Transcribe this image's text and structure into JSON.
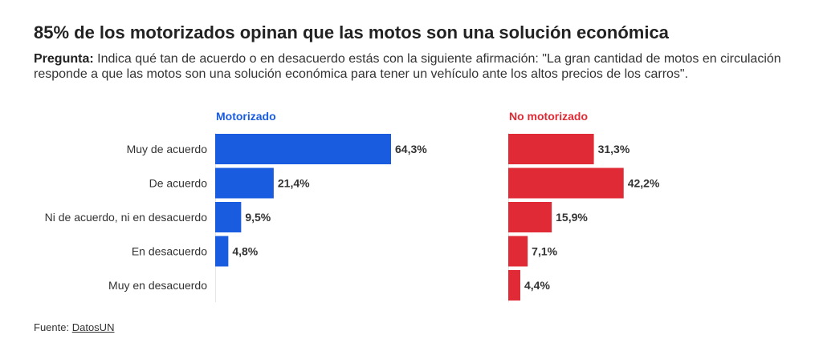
{
  "title": "85% de los motorizados opinan que las motos son una solución económica",
  "subtitle": {
    "label": "Pregunta:",
    "text": "Indica qué tan de acuerdo o en desacuerdo estás con la siguiente afirmación: \"La gran cantidad de motos en circulación responde a que las motos son una solución económica para tener un vehículo ante los altos precios de los carros\"."
  },
  "footer": {
    "label": "Fuente:",
    "link": "DatosUN"
  },
  "colors": {
    "motorizado": "#1a5ce0",
    "no_motorizado": "#e02a35"
  },
  "chart_data": {
    "type": "bar",
    "orientation": "horizontal",
    "categories": [
      "Muy de acuerdo",
      "De acuerdo",
      "Ni de acuerdo, ni en desacuerdo",
      "En desacuerdo",
      "Muy en desacuerdo"
    ],
    "series": [
      {
        "name": "Motorizado",
        "values": [
          64.3,
          21.4,
          9.5,
          4.8,
          0
        ],
        "labels": [
          "64,3%",
          "21,4%",
          "9,5%",
          "4,8%",
          ""
        ]
      },
      {
        "name": "No motorizado",
        "values": [
          31.3,
          42.2,
          15.9,
          7.1,
          4.4
        ],
        "labels": [
          "31,3%",
          "42,2%",
          "15,9%",
          "7,1%",
          "4,4%"
        ]
      }
    ]
  }
}
